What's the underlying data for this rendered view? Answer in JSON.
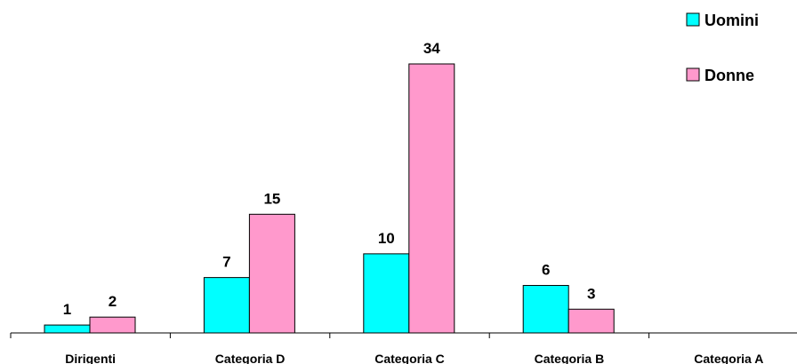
{
  "chart_data": {
    "type": "bar",
    "categories": [
      "Dirigenti",
      "Categoria D",
      "Categoria C",
      "Categoria B",
      "Categoria A"
    ],
    "series": [
      {
        "name": "Uomini",
        "color": "#00FFFF",
        "values": [
          1,
          7,
          10,
          6,
          0
        ]
      },
      {
        "name": "Donne",
        "color": "#FF99CC",
        "values": [
          2,
          15,
          34,
          3,
          0
        ]
      }
    ],
    "show_labels": [
      [
        true,
        true
      ],
      [
        true,
        true
      ],
      [
        true,
        true
      ],
      [
        true,
        true
      ],
      [
        false,
        false
      ]
    ],
    "ylim": [
      0,
      34
    ],
    "grid": false,
    "legend_position": "top-right"
  }
}
